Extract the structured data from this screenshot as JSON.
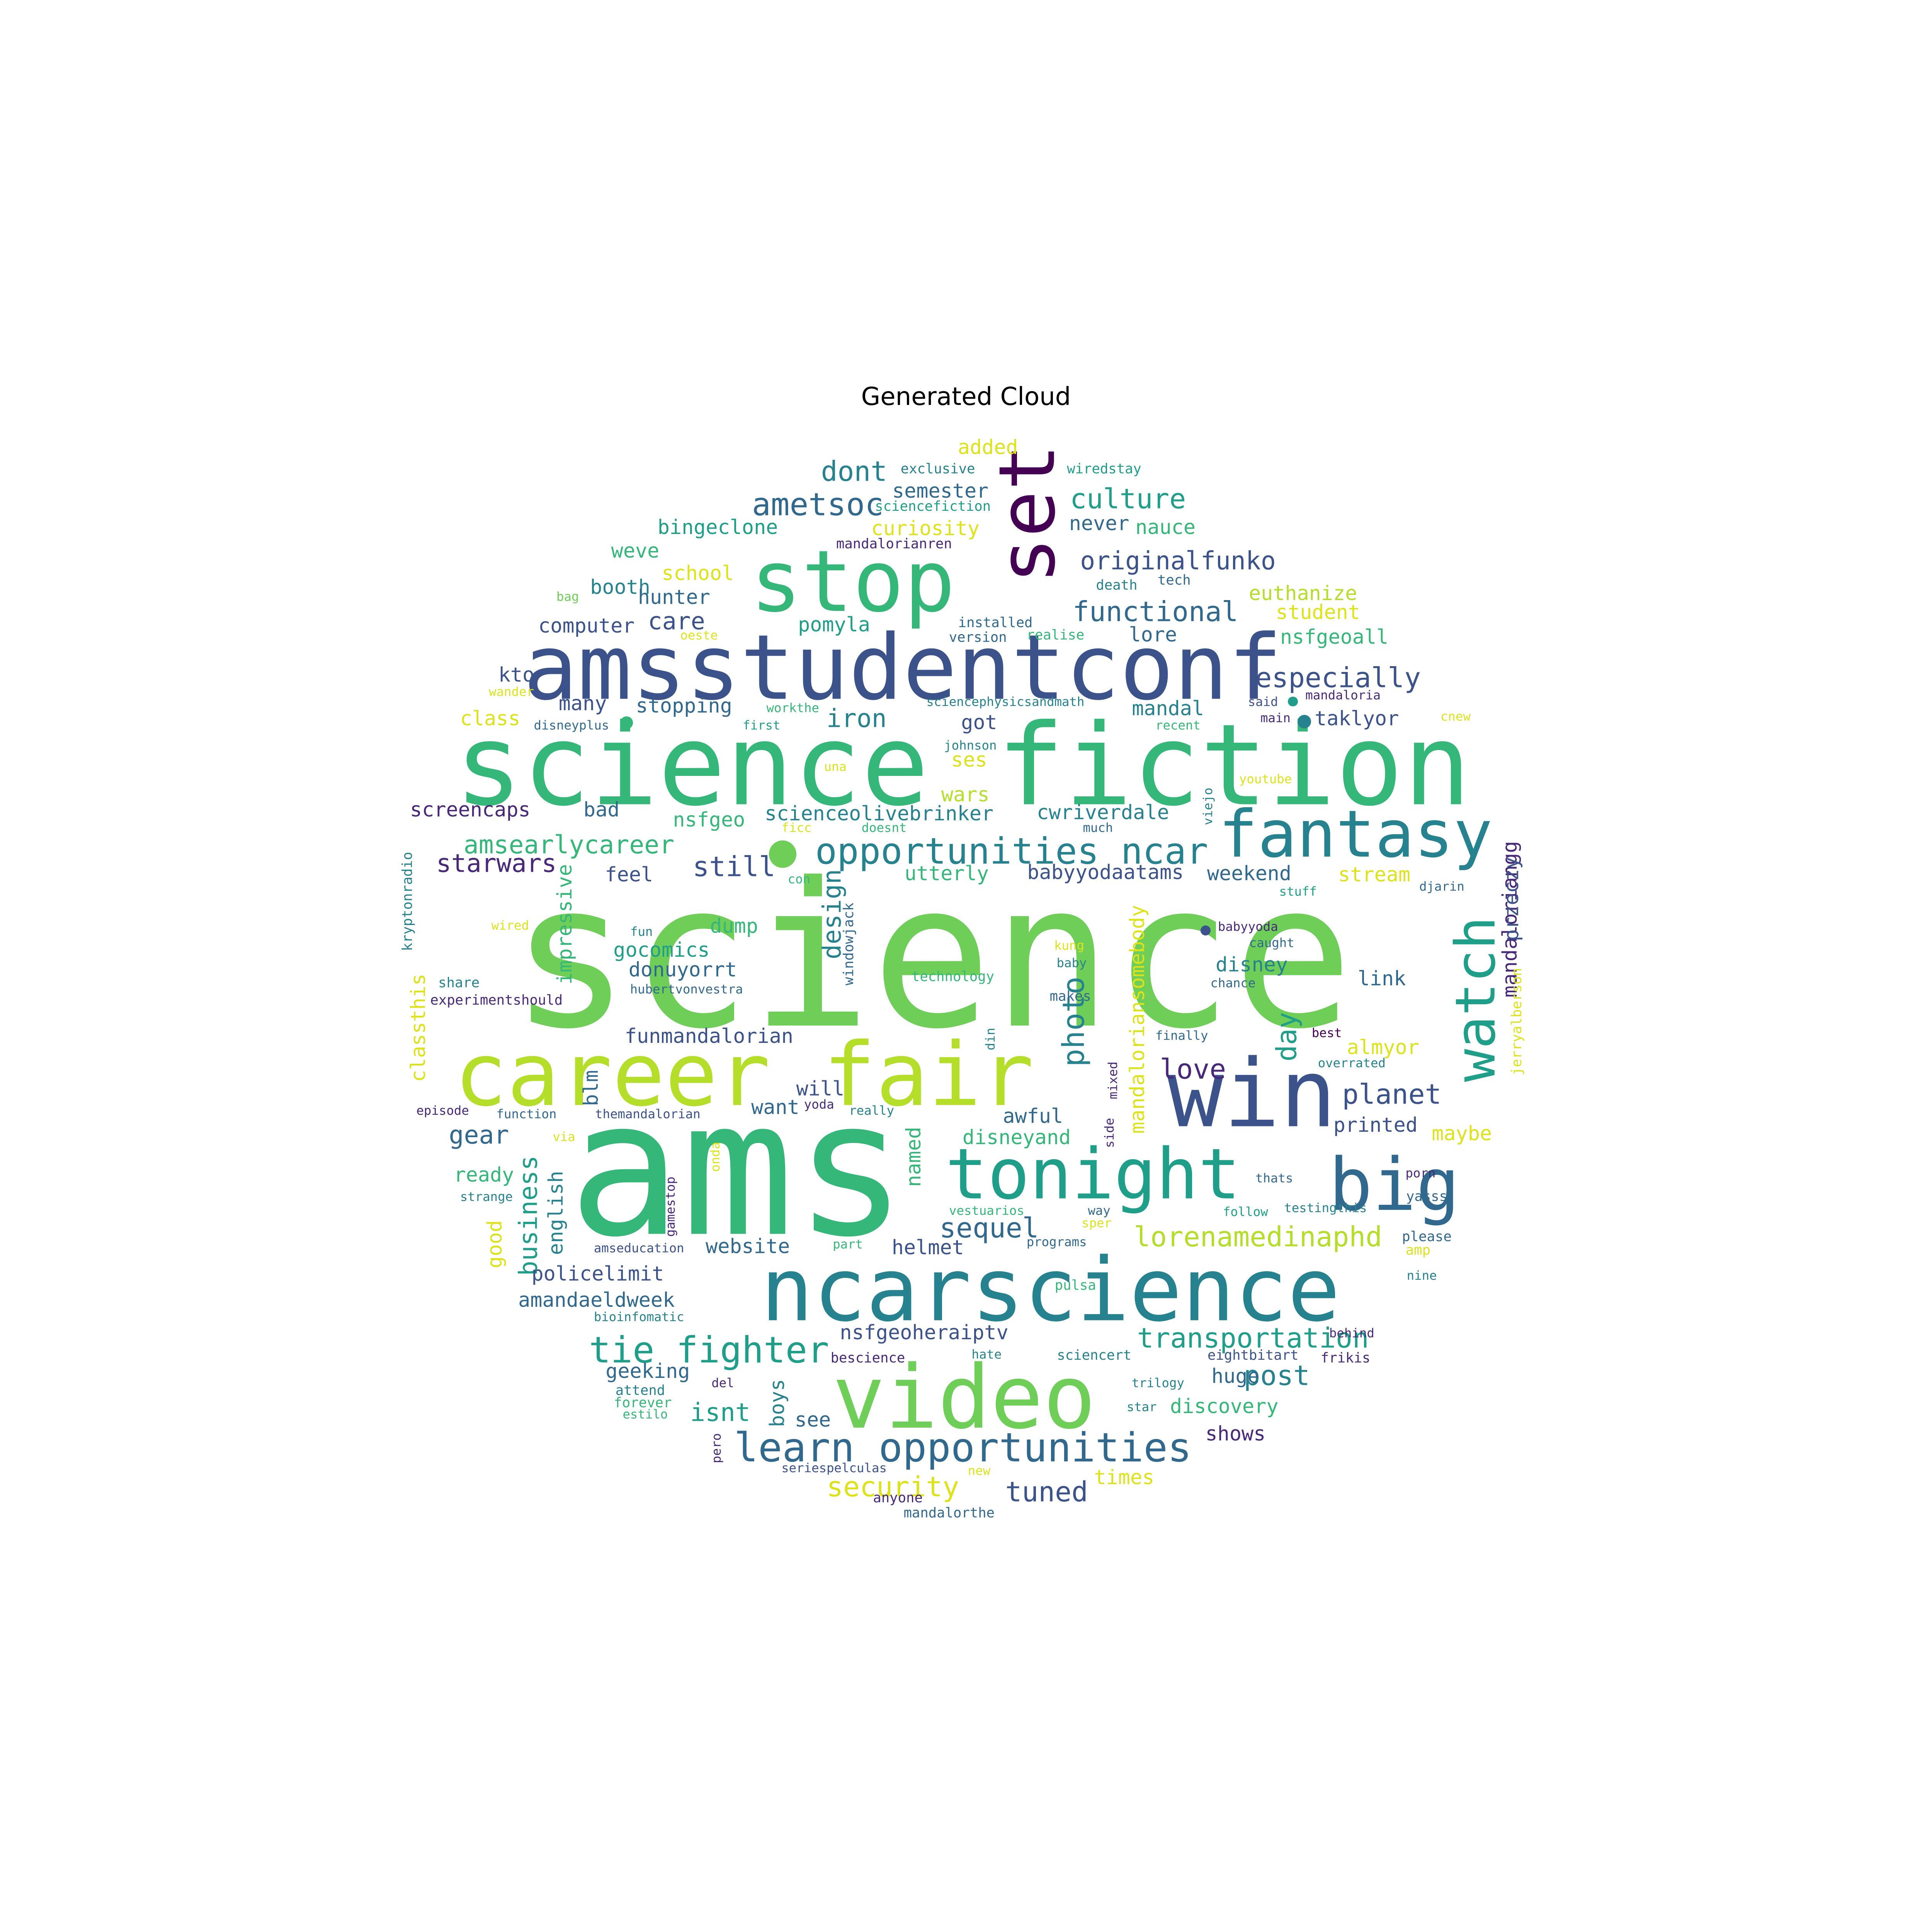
{
  "title": "Generated Cloud",
  "palette": {
    "d1": "#440154",
    "d2": "#482878",
    "d3": "#3b528b",
    "d4": "#31688e",
    "t1": "#26828e",
    "t2": "#1f9e89",
    "g1": "#35b779",
    "g2": "#6ece58",
    "g3": "#b5de2b",
    "y1": "#dde318",
    "y2": "#fde725"
  },
  "words": [
    {
      "text": "science",
      "c": "g2"
    },
    {
      "text": "ams",
      "c": "g1"
    },
    {
      "text": "science fiction",
      "c": "g1"
    },
    {
      "text": "amsstudentconf",
      "c": "d3"
    },
    {
      "text": "stop",
      "c": "g1"
    },
    {
      "text": "set",
      "c": "d1"
    },
    {
      "text": "career fair",
      "c": "g3"
    },
    {
      "text": "win",
      "c": "d3"
    },
    {
      "text": "ncarscience",
      "c": "t1"
    },
    {
      "text": "video",
      "c": "g2"
    },
    {
      "text": "tonight",
      "c": "t2"
    },
    {
      "text": "big",
      "c": "d4"
    },
    {
      "text": "fantasy",
      "c": "t1"
    },
    {
      "text": "watch",
      "c": "t2"
    },
    {
      "text": "opportunities ncar",
      "c": "t1"
    },
    {
      "text": "learn opportunities",
      "c": "d4"
    },
    {
      "text": "tie fighter",
      "c": "t2"
    },
    {
      "text": "ametsoc",
      "c": "d4"
    },
    {
      "text": "culture",
      "c": "t2"
    },
    {
      "text": "originalfunko",
      "c": "d3"
    },
    {
      "text": "functional",
      "c": "d4"
    },
    {
      "text": "especially",
      "c": "d3"
    },
    {
      "text": "dont",
      "c": "t1"
    },
    {
      "text": "amsearlycareer",
      "c": "g1"
    },
    {
      "text": "lorenamedinaphd",
      "c": "g3"
    },
    {
      "text": "transportation",
      "c": "t2"
    },
    {
      "text": "iron",
      "c": "t1"
    },
    {
      "text": "still",
      "c": "d3"
    },
    {
      "text": "starwars",
      "c": "d2"
    },
    {
      "text": "photo",
      "c": "t1"
    },
    {
      "text": "design",
      "c": "t1"
    },
    {
      "text": "day",
      "c": "t2"
    },
    {
      "text": "planet",
      "c": "d3"
    },
    {
      "text": "love",
      "c": "d2"
    },
    {
      "text": "sequel",
      "c": "d4"
    },
    {
      "text": "post",
      "c": "t1"
    },
    {
      "text": "security",
      "c": "y1"
    },
    {
      "text": "tuned",
      "c": "d3"
    },
    {
      "text": "isnt",
      "c": "t2"
    },
    {
      "text": "business",
      "c": "t2"
    },
    {
      "text": "gear",
      "c": "d4"
    },
    {
      "text": "care",
      "c": "d3"
    },
    {
      "text": "added",
      "c": "y1"
    },
    {
      "text": "semester",
      "c": "d4"
    },
    {
      "text": "curiosity",
      "c": "y1"
    },
    {
      "text": "bingeclone",
      "c": "t2"
    },
    {
      "text": "weve",
      "c": "g1"
    },
    {
      "text": "school",
      "c": "y1"
    },
    {
      "text": "booth",
      "c": "t1"
    },
    {
      "text": "hunter",
      "c": "d4"
    },
    {
      "text": "computer",
      "c": "d3"
    },
    {
      "text": "pomyla",
      "c": "t2"
    },
    {
      "text": "never",
      "c": "d4"
    },
    {
      "text": "nauce",
      "c": "g1"
    },
    {
      "text": "euthanize",
      "c": "g3"
    },
    {
      "text": "student",
      "c": "y1"
    },
    {
      "text": "nsfgeoall",
      "c": "g1"
    },
    {
      "text": "lore",
      "c": "d4"
    },
    {
      "text": "kto",
      "c": "d3"
    },
    {
      "text": "many",
      "c": "d3"
    },
    {
      "text": "class",
      "c": "y1"
    },
    {
      "text": "stopping",
      "c": "d4"
    },
    {
      "text": "got",
      "c": "d3"
    },
    {
      "text": "ses",
      "c": "y1"
    },
    {
      "text": "wars",
      "c": "g3"
    },
    {
      "text": "mandal",
      "c": "t1"
    },
    {
      "text": "taklyor",
      "c": "d3"
    },
    {
      "text": "screencaps",
      "c": "d2"
    },
    {
      "text": "bad",
      "c": "d4"
    },
    {
      "text": "nsfgeo",
      "c": "g1"
    },
    {
      "text": "scienceolivebrinker",
      "c": "t1"
    },
    {
      "text": "cwriverdale",
      "c": "t1"
    },
    {
      "text": "feel",
      "c": "d3"
    },
    {
      "text": "utterly",
      "c": "g1"
    },
    {
      "text": "babyyodaatams",
      "c": "d3"
    },
    {
      "text": "weekend",
      "c": "d4"
    },
    {
      "text": "stream",
      "c": "y1"
    },
    {
      "text": "dump",
      "c": "g1"
    },
    {
      "text": "gocomics",
      "c": "t2"
    },
    {
      "text": "donuyorrt",
      "c": "d4"
    },
    {
      "text": "disney",
      "c": "t1"
    },
    {
      "text": "link",
      "c": "d4"
    },
    {
      "text": "funmandalorian",
      "c": "d3"
    },
    {
      "text": "almyor",
      "c": "y1"
    },
    {
      "text": "will",
      "c": "d3"
    },
    {
      "text": "want",
      "c": "d4"
    },
    {
      "text": "awful",
      "c": "d4"
    },
    {
      "text": "printed",
      "c": "d3"
    },
    {
      "text": "maybe",
      "c": "y1"
    },
    {
      "text": "disneyand",
      "c": "g1"
    },
    {
      "text": "ready",
      "c": "g1"
    },
    {
      "text": "good",
      "c": "y1"
    },
    {
      "text": "website",
      "c": "d4"
    },
    {
      "text": "helmet",
      "c": "d3"
    },
    {
      "text": "policelimit",
      "c": "d3"
    },
    {
      "text": "amandaeldweek",
      "c": "d4"
    },
    {
      "text": "nsfgeoheraiptv",
      "c": "d3"
    },
    {
      "text": "geeking",
      "c": "d4"
    },
    {
      "text": "huge",
      "c": "d4"
    },
    {
      "text": "discovery",
      "c": "g1"
    },
    {
      "text": "see",
      "c": "d4"
    },
    {
      "text": "shows",
      "c": "d2"
    },
    {
      "text": "times",
      "c": "y1"
    },
    {
      "text": "blm",
      "c": "d4"
    },
    {
      "text": "english",
      "c": "t1"
    },
    {
      "text": "impressive",
      "c": "g1"
    },
    {
      "text": "classthis",
      "c": "y1"
    },
    {
      "text": "named",
      "c": "g1"
    },
    {
      "text": "mandaloriansomebody",
      "c": "y1"
    },
    {
      "text": "mandaloriangg",
      "c": "d2"
    },
    {
      "text": "przeczy",
      "c": "d3"
    },
    {
      "text": "boys",
      "c": "t1"
    },
    {
      "text": "exclusive",
      "c": "t1"
    },
    {
      "text": "wiredstay",
      "c": "t2"
    },
    {
      "text": "sciencefiction",
      "c": "t2"
    },
    {
      "text": "mandalorianren",
      "c": "d2"
    },
    {
      "text": "death",
      "c": "t1"
    },
    {
      "text": "tech",
      "c": "d4"
    },
    {
      "text": "installed",
      "c": "d4"
    },
    {
      "text": "version",
      "c": "d4"
    },
    {
      "text": "realise",
      "c": "g1"
    },
    {
      "text": "bag",
      "c": "g2"
    },
    {
      "text": "oeste",
      "c": "y1"
    },
    {
      "text": "wander",
      "c": "y1"
    },
    {
      "text": "workthe",
      "c": "g1"
    },
    {
      "text": "sciencephysicsandmath",
      "c": "t1"
    },
    {
      "text": "mandaloria",
      "c": "d2"
    },
    {
      "text": "said",
      "c": "d3"
    },
    {
      "text": "disneyplus",
      "c": "d4"
    },
    {
      "text": "first",
      "c": "t2"
    },
    {
      "text": "recent",
      "c": "g1"
    },
    {
      "text": "main",
      "c": "d2"
    },
    {
      "text": "cnew",
      "c": "y1"
    },
    {
      "text": "johnson",
      "c": "t1"
    },
    {
      "text": "una",
      "c": "y1"
    },
    {
      "text": "viejo",
      "c": "t1"
    },
    {
      "text": "youtube",
      "c": "y1"
    },
    {
      "text": "ficc",
      "c": "y1"
    },
    {
      "text": "doesnt",
      "c": "g1"
    },
    {
      "text": "much",
      "c": "d4"
    },
    {
      "text": "kryptonradio",
      "c": "t1"
    },
    {
      "text": "con",
      "c": "g1"
    },
    {
      "text": "stuff",
      "c": "t2"
    },
    {
      "text": "djarin",
      "c": "d4"
    },
    {
      "text": "wired",
      "c": "y1"
    },
    {
      "text": "fun",
      "c": "t1"
    },
    {
      "text": "windowjack",
      "c": "d4"
    },
    {
      "text": "kung",
      "c": "y1"
    },
    {
      "text": "baby",
      "c": "t1"
    },
    {
      "text": "babyyoda",
      "c": "d2"
    },
    {
      "text": "caught",
      "c": "d4"
    },
    {
      "text": "jerryalberson",
      "c": "y1"
    },
    {
      "text": "share",
      "c": "t1"
    },
    {
      "text": "hubertvonvestra",
      "c": "d4"
    },
    {
      "text": "technology",
      "c": "g1"
    },
    {
      "text": "makes",
      "c": "d4"
    },
    {
      "text": "chance",
      "c": "d4"
    },
    {
      "text": "experimentshould",
      "c": "d2"
    },
    {
      "text": "finally",
      "c": "d4"
    },
    {
      "text": "best",
      "c": "d1"
    },
    {
      "text": "din",
      "c": "t1"
    },
    {
      "text": "overrated",
      "c": "t1"
    },
    {
      "text": "episode",
      "c": "d2"
    },
    {
      "text": "function",
      "c": "d4"
    },
    {
      "text": "themandalorian",
      "c": "d3"
    },
    {
      "text": "yoda",
      "c": "d2"
    },
    {
      "text": "really",
      "c": "t1"
    },
    {
      "text": "mixed",
      "c": "d2"
    },
    {
      "text": "via",
      "c": "y1"
    },
    {
      "text": "side",
      "c": "d2"
    },
    {
      "text": "onda",
      "c": "y1"
    },
    {
      "text": "gamestop",
      "c": "d2"
    },
    {
      "text": "strange",
      "c": "t1"
    },
    {
      "text": "vestuarios",
      "c": "g1"
    },
    {
      "text": "way",
      "c": "d4"
    },
    {
      "text": "thats",
      "c": "d4"
    },
    {
      "text": "porn",
      "c": "d2"
    },
    {
      "text": "sper",
      "c": "y1"
    },
    {
      "text": "follow",
      "c": "t2"
    },
    {
      "text": "testingthis",
      "c": "t1"
    },
    {
      "text": "yasss",
      "c": "d4"
    },
    {
      "text": "part",
      "c": "g1"
    },
    {
      "text": "programs",
      "c": "d4"
    },
    {
      "text": "please",
      "c": "d4"
    },
    {
      "text": "amseducation",
      "c": "d3"
    },
    {
      "text": "amp",
      "c": "y1"
    },
    {
      "text": "nine",
      "c": "t1"
    },
    {
      "text": "pulsa",
      "c": "g1"
    },
    {
      "text": "bioinfomatic",
      "c": "t1"
    },
    {
      "text": "behind",
      "c": "d2"
    },
    {
      "text": "bescience",
      "c": "d2"
    },
    {
      "text": "hate",
      "c": "t1"
    },
    {
      "text": "sciencert",
      "c": "t1"
    },
    {
      "text": "eightbitart",
      "c": "d3"
    },
    {
      "text": "frikis",
      "c": "d2"
    },
    {
      "text": "attend",
      "c": "t1"
    },
    {
      "text": "del",
      "c": "d2"
    },
    {
      "text": "trilogy",
      "c": "t1"
    },
    {
      "text": "forever",
      "c": "g1"
    },
    {
      "text": "estilo",
      "c": "g1"
    },
    {
      "text": "star",
      "c": "t1"
    },
    {
      "text": "pero",
      "c": "d2"
    },
    {
      "text": "seriespelculas",
      "c": "d3"
    },
    {
      "text": "new",
      "c": "y1"
    },
    {
      "text": "anyone",
      "c": "d2"
    },
    {
      "text": "mandalorthe",
      "c": "d4"
    }
  ],
  "dots": [
    {
      "c": "g2"
    },
    {
      "c": "t1"
    },
    {
      "c": "t2"
    },
    {
      "c": "g1"
    },
    {
      "c": "d3"
    }
  ]
}
